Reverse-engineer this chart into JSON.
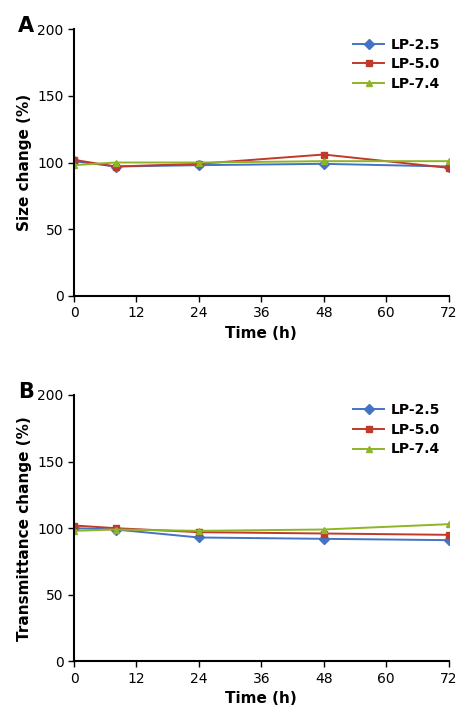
{
  "time_points": [
    0,
    8,
    24,
    48,
    72
  ],
  "panel_A": {
    "title": "A",
    "ylabel": "Size change (%)",
    "xlabel": "Time (h)",
    "LP25": [
      101,
      97,
      98,
      99,
      97
    ],
    "LP50": [
      102,
      97,
      99,
      106,
      96
    ],
    "LP74": [
      98,
      100,
      100,
      101,
      101
    ]
  },
  "panel_B": {
    "title": "B",
    "ylabel": "Transmittance change (%)",
    "xlabel": "Time (h)",
    "LP25": [
      100,
      99,
      93,
      92,
      91
    ],
    "LP50": [
      102,
      100,
      97,
      96,
      95
    ],
    "LP74": [
      98,
      99,
      98,
      99,
      103
    ]
  },
  "color_LP25": "#4472C4",
  "color_LP50": "#C0392B",
  "color_LP74": "#8DB526",
  "legend_labels": [
    "LP-2.5",
    "LP-5.0",
    "LP-7.4"
  ],
  "ylim": [
    0,
    200
  ],
  "xlim": [
    0,
    72
  ],
  "yticks": [
    0,
    50,
    100,
    150,
    200
  ],
  "xticks": [
    0,
    12,
    24,
    36,
    48,
    60,
    72
  ],
  "linewidth": 1.4,
  "markersize": 5,
  "tick_fontsize": 10,
  "label_fontsize": 11,
  "title_fontsize": 15,
  "legend_fontsize": 10
}
